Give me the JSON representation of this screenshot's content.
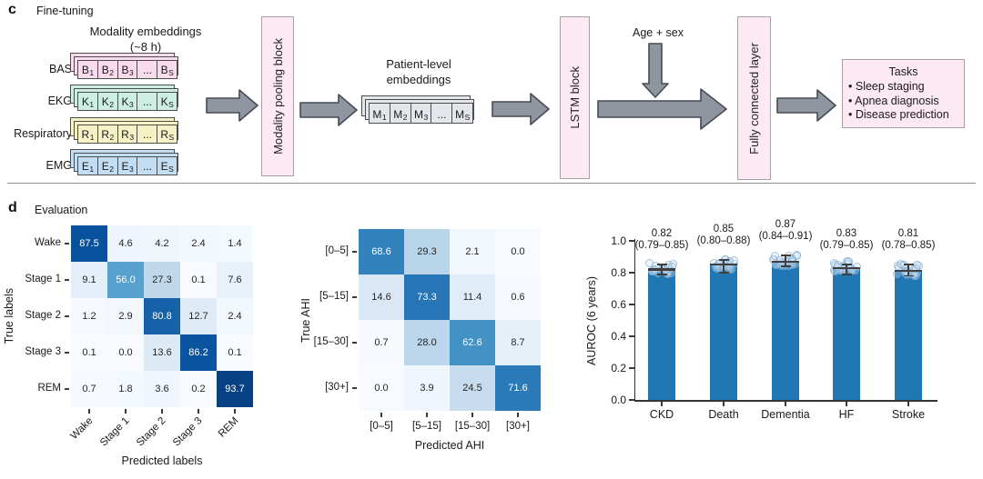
{
  "panel_c": {
    "label": "c",
    "title": "Fine-tuning",
    "embeddings_title": "Modality embeddings",
    "embeddings_subtitle": "(~8 h)",
    "modalities": [
      {
        "label": "BAS",
        "color": "#f8dbec",
        "cells": [
          {
            "t": "B",
            "s": "1"
          },
          {
            "t": "B",
            "s": "2"
          },
          {
            "t": "B",
            "s": "3"
          },
          {
            "t": "...",
            "s": ""
          },
          {
            "t": "B",
            "s": "S"
          }
        ]
      },
      {
        "label": "EKG",
        "color": "#cdeee3",
        "cells": [
          {
            "t": "K",
            "s": "1"
          },
          {
            "t": "K",
            "s": "2"
          },
          {
            "t": "K",
            "s": "3"
          },
          {
            "t": "...",
            "s": ""
          },
          {
            "t": "K",
            "s": "S"
          }
        ]
      },
      {
        "label": "Respiratory",
        "color": "#f7f2c5",
        "cells": [
          {
            "t": "R",
            "s": "1"
          },
          {
            "t": "R",
            "s": "2"
          },
          {
            "t": "R",
            "s": "3"
          },
          {
            "t": "...",
            "s": ""
          },
          {
            "t": "R",
            "s": "S"
          }
        ]
      },
      {
        "label": "EMG",
        "color": "#c3ddf3",
        "cells": [
          {
            "t": "E",
            "s": "1"
          },
          {
            "t": "E",
            "s": "2"
          },
          {
            "t": "E",
            "s": "3"
          },
          {
            "t": "...",
            "s": ""
          },
          {
            "t": "E",
            "s": "S"
          }
        ]
      }
    ],
    "pooling_block_label": "Modality pooling block",
    "patient_title_line1": "Patient-level",
    "patient_title_line2": "embeddings",
    "patient_row": {
      "color": "#e3e6ea",
      "cells": [
        {
          "t": "M",
          "s": "1"
        },
        {
          "t": "M",
          "s": "2"
        },
        {
          "t": "M",
          "s": "3"
        },
        {
          "t": "...",
          "s": ""
        },
        {
          "t": "M",
          "s": "S"
        }
      ]
    },
    "lstm_block_label": "LSTM block",
    "age_sex_label": "Age + sex",
    "fc_block_label": "Fully connected layer",
    "tasks": {
      "title": "Tasks",
      "items": [
        "Sleep staging",
        "Apnea diagnosis",
        "Disease prediction"
      ]
    }
  },
  "panel_d": {
    "label": "d",
    "title": "Evaluation"
  },
  "chart_data": [
    {
      "type": "heatmap",
      "name": "sleep-staging-confusion-matrix",
      "xlabel": "Predicted labels",
      "ylabel": "True labels",
      "x_categories": [
        "Wake",
        "Stage 1",
        "Stage 2",
        "Stage 3",
        "REM"
      ],
      "y_categories": [
        "Wake",
        "Stage 1",
        "Stage 2",
        "Stage 3",
        "REM"
      ],
      "values": [
        [
          87.5,
          4.6,
          4.2,
          2.4,
          1.4
        ],
        [
          9.1,
          56.0,
          27.3,
          0.1,
          7.6
        ],
        [
          1.2,
          2.9,
          80.8,
          12.7,
          2.4
        ],
        [
          0.1,
          0.0,
          13.6,
          86.2,
          0.1
        ],
        [
          0.7,
          1.8,
          3.6,
          0.2,
          93.7
        ]
      ],
      "colormap": "Blues",
      "vmin": 0,
      "vmax": 100,
      "grid": false
    },
    {
      "type": "heatmap",
      "name": "ahi-confusion-matrix",
      "xlabel": "Predicted AHI",
      "ylabel": "True AHI",
      "x_categories": [
        "[0–5]",
        "[5–15]",
        "[15–30]",
        "[30+]"
      ],
      "y_categories": [
        "[0–5]",
        "[5–15]",
        "[15–30]",
        "[30+]"
      ],
      "values": [
        [
          68.6,
          29.3,
          2.1,
          0.0
        ],
        [
          14.6,
          73.3,
          11.4,
          0.6
        ],
        [
          0.7,
          28.0,
          62.6,
          8.7
        ],
        [
          0.0,
          3.9,
          24.5,
          71.6
        ]
      ],
      "colormap": "Blues",
      "vmin": 0,
      "vmax": 100,
      "grid": false
    },
    {
      "type": "bar",
      "name": "disease-prediction-auroc",
      "ylabel": "AUROC (6 years)",
      "categories": [
        "CKD",
        "Death",
        "Dementia",
        "HF",
        "Stroke"
      ],
      "values": [
        0.82,
        0.85,
        0.87,
        0.83,
        0.81
      ],
      "ci_low": [
        0.79,
        0.8,
        0.84,
        0.79,
        0.78
      ],
      "ci_high": [
        0.85,
        0.88,
        0.91,
        0.85,
        0.85
      ],
      "value_labels": [
        "0.82",
        "0.85",
        "0.87",
        "0.83",
        "0.81"
      ],
      "ci_labels": [
        "(0.79–0.85)",
        "(0.80–0.88)",
        "(0.84–0.91)",
        "(0.79–0.85)",
        "(0.78–0.85)"
      ],
      "ylim": [
        0,
        1
      ],
      "ytick_labels": [
        "0.0",
        "0.2",
        "0.4",
        "0.6",
        "0.8",
        "1.0"
      ],
      "bar_color": "#2077b4",
      "errorbar_color": "#3f3f3f",
      "legend": "none"
    }
  ]
}
